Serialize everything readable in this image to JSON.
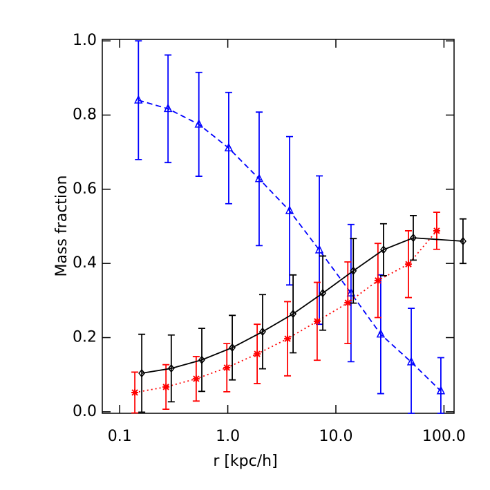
{
  "chart_data": {
    "type": "line",
    "x_label": "r [kpc/h]",
    "y_label": "Mass fraction",
    "log_x": true,
    "xlim": [
      0.069,
      124
    ],
    "ylim": [
      -0.004,
      1.004
    ],
    "xticks": [
      {
        "value": 0.1,
        "label": "0.1"
      },
      {
        "value": 1,
        "label": "1.0"
      },
      {
        "value": 10,
        "label": "10.0"
      },
      {
        "value": 100,
        "label": "100.0"
      }
    ],
    "yticks": [
      {
        "value": 0,
        "label": "0.0"
      },
      0.2,
      0.4,
      0.6,
      0.8,
      {
        "value": 1,
        "label": "1.0"
      }
    ],
    "series": [
      {
        "color": "#0000ff",
        "line_style": "dashed",
        "marker": "triangle",
        "x": [
          0.149,
          0.28,
          0.54,
          1.02,
          1.95,
          3.73,
          7.03,
          13.8,
          26,
          49.8,
          93.6
        ],
        "values": [
          0.84,
          0.817,
          0.775,
          0.711,
          0.628,
          0.542,
          0.436,
          0.32,
          0.209,
          0.134,
          0.056
        ],
        "errors": [
          0.16,
          0.145,
          0.14,
          0.15,
          0.18,
          0.2,
          0.2,
          0.185,
          0.16,
          0.145,
          0.09
        ]
      },
      {
        "color": "#ff0000",
        "line_style": "dotted",
        "marker": "asterisk",
        "x": [
          0.138,
          0.268,
          0.51,
          0.98,
          1.87,
          3.57,
          6.71,
          12.9,
          24.5,
          46.9,
          85.7
        ],
        "values": [
          0.052,
          0.067,
          0.089,
          0.119,
          0.156,
          0.197,
          0.244,
          0.294,
          0.354,
          0.398,
          0.488
        ],
        "errors": [
          0.055,
          0.06,
          0.06,
          0.065,
          0.08,
          0.1,
          0.105,
          0.11,
          0.1,
          0.09,
          0.05
        ]
      },
      {
        "color": "#000000",
        "line_style": "solid",
        "marker": "diamond",
        "x": [
          0.16,
          0.3,
          0.575,
          1.1,
          2.1,
          4.02,
          7.57,
          14.5,
          27.6,
          52,
          150
        ],
        "values": [
          0.104,
          0.117,
          0.14,
          0.173,
          0.216,
          0.264,
          0.32,
          0.38,
          0.437,
          0.469,
          0.46
        ],
        "errors": [
          0.105,
          0.09,
          0.085,
          0.087,
          0.1,
          0.105,
          0.1,
          0.087,
          0.07,
          0.06,
          0.06
        ]
      }
    ]
  }
}
